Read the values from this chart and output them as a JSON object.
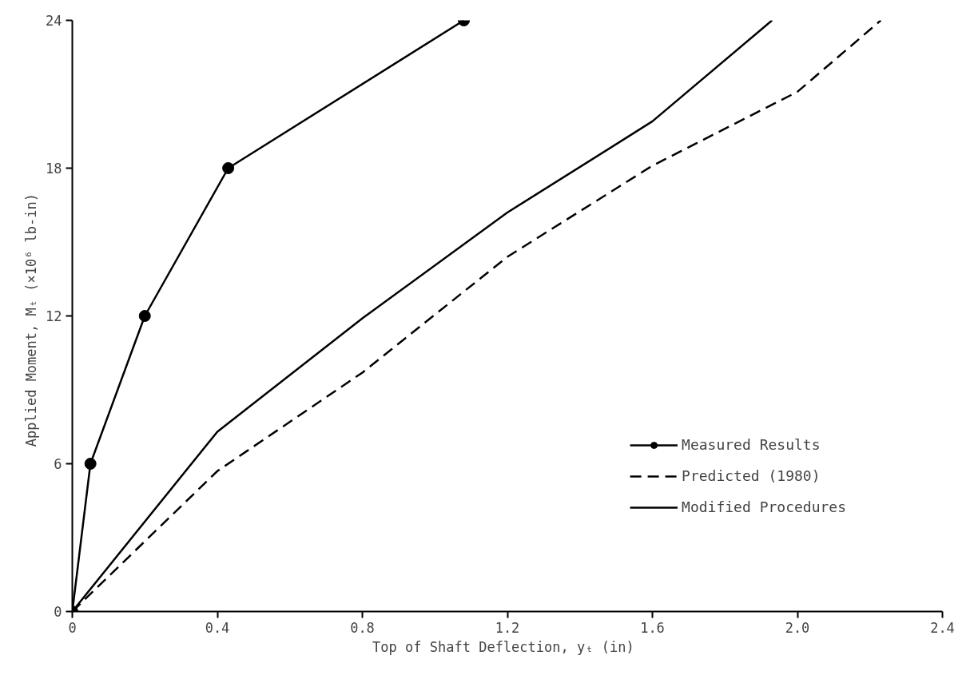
{
  "chart_data": {
    "type": "line",
    "xlabel": "Top of Shaft Deflection, yₜ  (in)",
    "ylabel": "Applied Moment, Mₜ  (×10⁶ lb-in)",
    "xlim": [
      0,
      2.4
    ],
    "ylim": [
      0,
      24
    ],
    "xticks": [
      0,
      0.4,
      0.8,
      1.2,
      1.6,
      {
        "value": 2,
        "label": "2.0"
      },
      2.4
    ],
    "yticks": [
      0,
      6,
      12,
      18,
      24
    ],
    "grid": false,
    "legend": "bottom right",
    "series": [
      {
        "name": "Measured Results",
        "color": "#000000",
        "marker": "circle",
        "line_style": "solid",
        "x": [
          0,
          0.05,
          0.2,
          0.43,
          1.08
        ],
        "values": [
          0,
          6,
          12,
          18,
          24
        ]
      },
      {
        "name": "Predicted (1980)",
        "color": "#000000",
        "marker": "none",
        "line_style": "dashed",
        "x": [
          0,
          0.4,
          0.8,
          1.2,
          1.6,
          2.0,
          2.23
        ],
        "values": [
          0,
          5.7,
          9.7,
          14.4,
          18.1,
          21.1,
          24
        ]
      },
      {
        "name": "Modified Procedures",
        "color": "#000000",
        "marker": "none",
        "line_style": "solid",
        "x": [
          0,
          0.4,
          0.8,
          1.2,
          1.6,
          1.93
        ],
        "values": [
          0,
          7.3,
          11.9,
          16.2,
          19.9,
          24
        ]
      }
    ]
  }
}
